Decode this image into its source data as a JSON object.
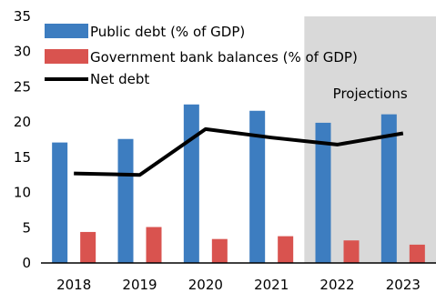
{
  "chart_data": {
    "type": "bar",
    "categories": [
      "2018",
      "2019",
      "2020",
      "2021",
      "2022",
      "2023"
    ],
    "series": [
      {
        "name": "Public debt (% of GDP)",
        "type": "bar",
        "color": "#3d7dc0",
        "values": [
          17.1,
          17.6,
          22.5,
          21.6,
          19.9,
          21.1
        ]
      },
      {
        "name": "Government bank balances (% of GDP)",
        "type": "bar",
        "color": "#d9534f",
        "values": [
          4.4,
          5.1,
          3.4,
          3.8,
          3.2,
          2.6
        ]
      },
      {
        "name": "Net debt",
        "type": "line",
        "color": "#000000",
        "values": [
          12.7,
          12.5,
          19.0,
          17.8,
          16.8,
          18.4
        ]
      }
    ],
    "ylim": [
      0,
      35
    ],
    "yticks": [
      0,
      5,
      10,
      15,
      20,
      25,
      30,
      35
    ],
    "title": "",
    "xlabel": "",
    "ylabel": "",
    "legend_position": "top-left",
    "grid": false,
    "shaded_region": {
      "from": "2022",
      "to": "2023",
      "label": "Projections",
      "color": "#d9d9d9"
    }
  }
}
